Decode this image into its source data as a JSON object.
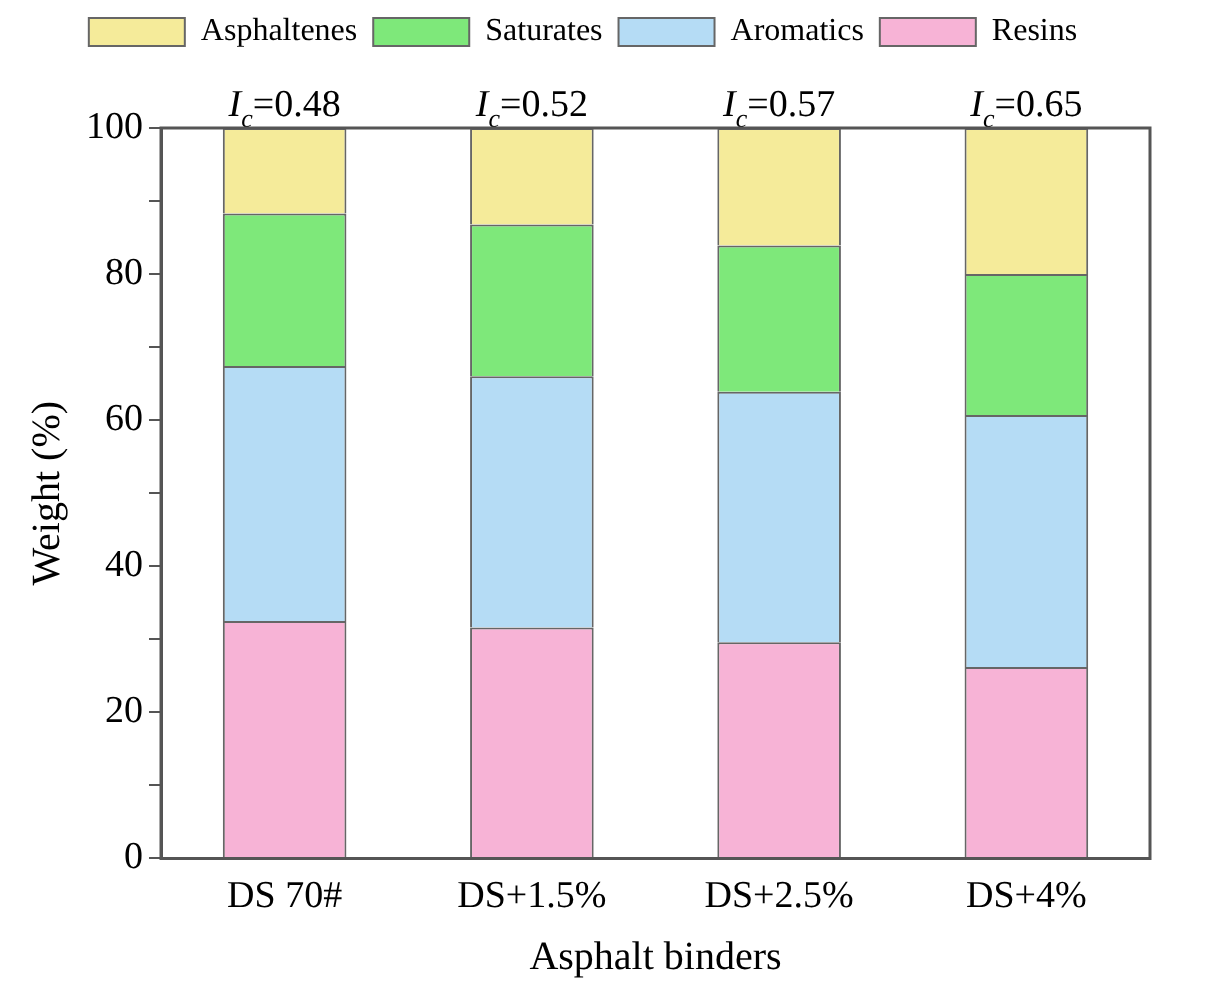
{
  "chart_data": {
    "type": "bar",
    "stacked": true,
    "xlabel": "Asphalt binders",
    "ylabel": "Weight (%)",
    "categories": [
      "DS 70#",
      "DS+1.5%",
      "DS+2.5%",
      "DS+4%"
    ],
    "series": [
      {
        "name": "Resins",
        "color": "#f7b3d6",
        "values": [
          32.5,
          31.6,
          29.6,
          26.2
        ]
      },
      {
        "name": "Aromatics",
        "color": "#b5dcf5",
        "values": [
          34.9,
          34.4,
          34.3,
          34.5
        ]
      },
      {
        "name": "Saturates",
        "color": "#7ee87a",
        "values": [
          20.9,
          20.8,
          20.0,
          19.3
        ]
      },
      {
        "name": "Asphaltenes",
        "color": "#f5eb9a",
        "values": [
          11.7,
          13.2,
          16.1,
          20.0
        ]
      }
    ],
    "ylim": [
      0,
      100
    ],
    "yticks": [
      0,
      {
        "value": 10,
        "label": null
      },
      20,
      {
        "value": 30,
        "label": null
      },
      40,
      {
        "value": 50,
        "label": null
      },
      60,
      {
        "value": 70,
        "label": null
      },
      80,
      {
        "value": 90,
        "label": null
      },
      100
    ],
    "legend": "top",
    "grid": false,
    "annotations": [
      {
        "text": "I$_{c}$=0.48",
        "x": "DS 70#",
        "y": 100
      },
      {
        "text": "I$_{c}$=0.52",
        "x": "DS+1.5%",
        "y": 100
      },
      {
        "text": "I$_{c}$=0.57",
        "x": "DS+2.5%",
        "y": 100
      },
      {
        "text": "I$_{c}$=0.65",
        "x": "DS+4%",
        "y": 100
      }
    ]
  }
}
